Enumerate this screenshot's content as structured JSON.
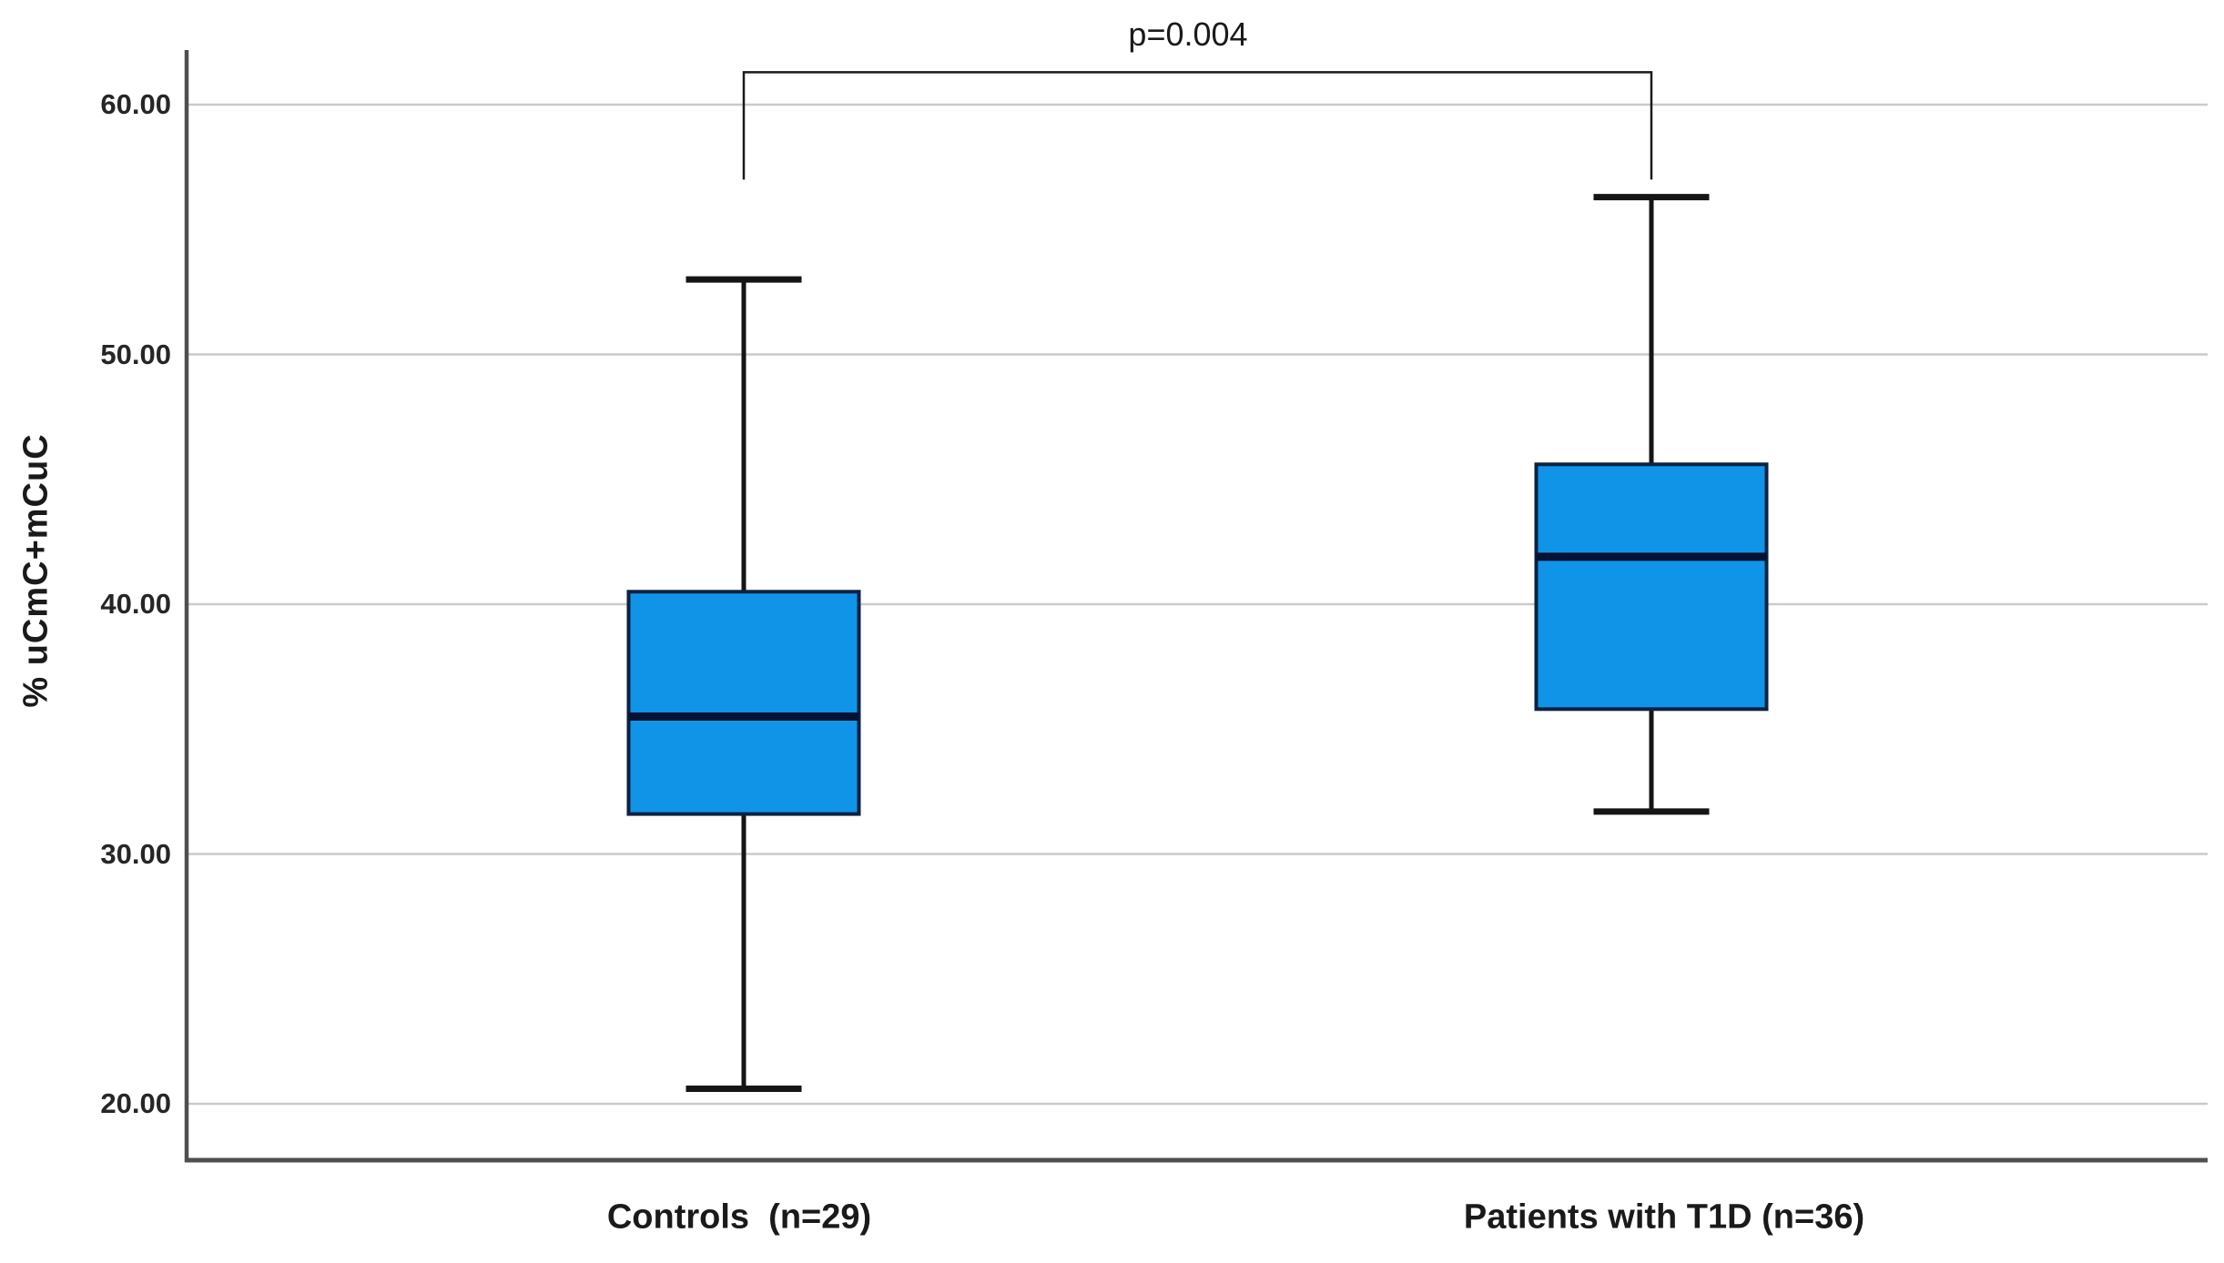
{
  "chart_data": {
    "type": "boxplot",
    "title": "",
    "xlabel": "",
    "ylabel": "% uCmC+mCuC",
    "x_categories": [
      "Controls  (n=29)",
      "Patients with T1D (n=36)"
    ],
    "y_axis": {
      "min": 17.8,
      "max": 62.2,
      "grid": true,
      "ticks": [
        {
          "value": 60,
          "label": "60.00"
        },
        {
          "value": 50,
          "label": "50.00"
        },
        {
          "value": 40,
          "label": "40.00"
        },
        {
          "value": 30,
          "label": "30.00"
        },
        {
          "value": 20,
          "label": "20.00"
        }
      ]
    },
    "groups": [
      {
        "label": "Controls  (n=29)",
        "n": 29,
        "whisker_low": 20.6,
        "q1": 31.6,
        "median": 35.5,
        "q3": 40.5,
        "whisker_high": 53.0
      },
      {
        "label": "Patients with T1D (n=36)",
        "n": 36,
        "whisker_low": 31.7,
        "q1": 35.8,
        "median": 41.9,
        "q3": 45.6,
        "whisker_high": 56.3
      }
    ],
    "significance": {
      "label": "p=0.004",
      "bar_value": 61.3,
      "tip_value": 57.0
    },
    "colors": {
      "box_fill": "#0f94e8",
      "box_border": "#0c2142",
      "median": "#071231",
      "whisker": "#151515",
      "gridline": "#cacaca",
      "axis": "#4f4f4f",
      "bracket": "#1a1a1a",
      "text": "#1a1a1a"
    }
  }
}
